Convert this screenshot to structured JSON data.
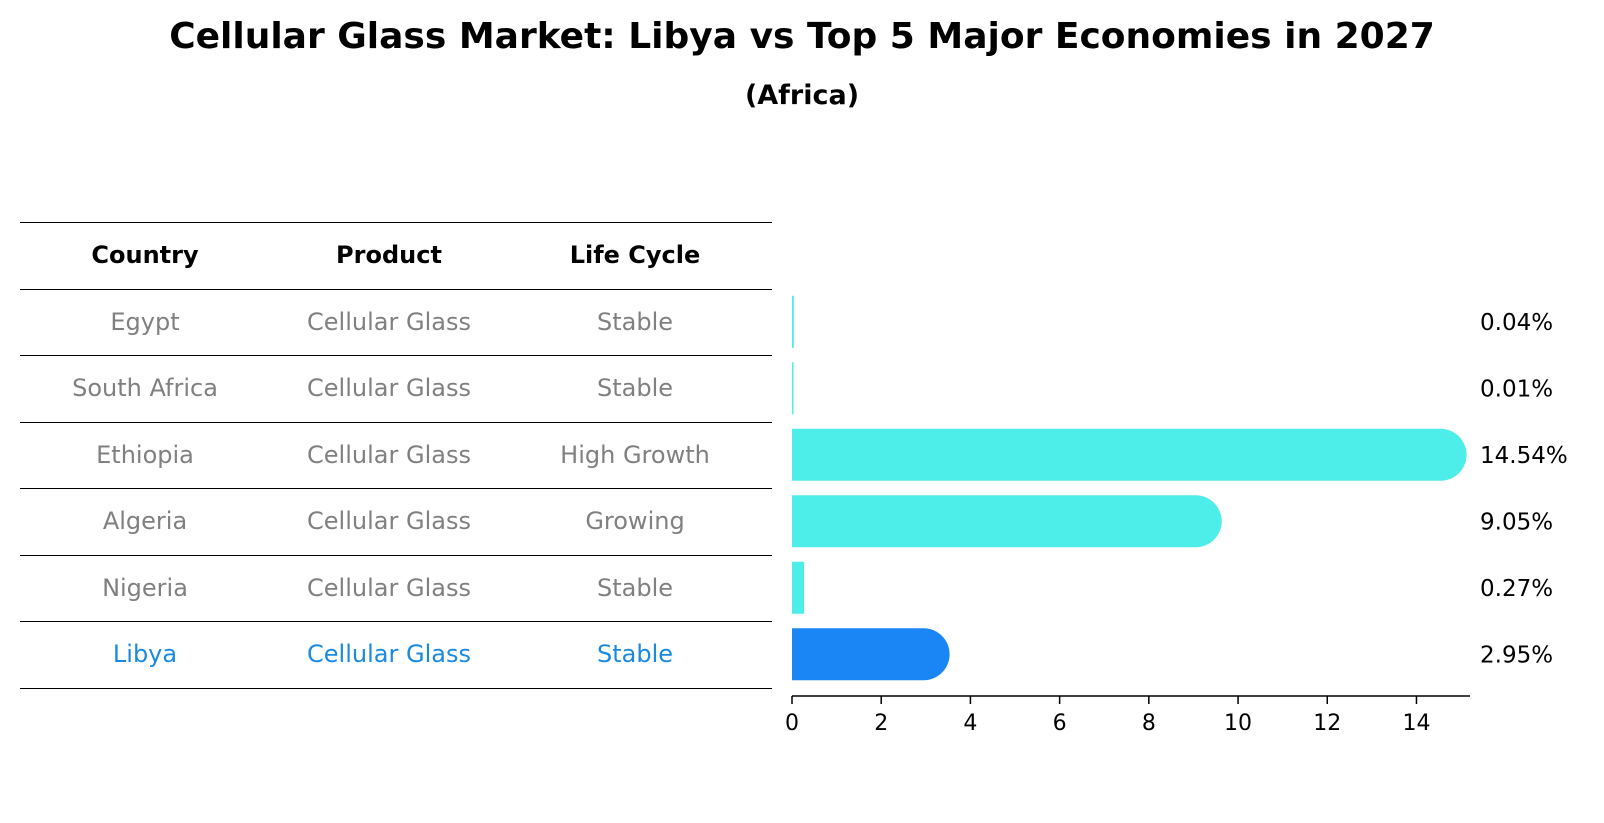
{
  "title": "Cellular Glass Market: Libya vs Top 5 Major Economies in 2027",
  "subtitle": "(Africa)",
  "colors": {
    "bar": "#4dede9",
    "highlight": "#1a85f5",
    "highlight_text": "#1a8ae0"
  },
  "table": {
    "headers": [
      "Country",
      "Product",
      "Life Cycle"
    ],
    "rows": [
      [
        "Egypt",
        "Cellular Glass",
        "Stable"
      ],
      [
        "South Africa",
        "Cellular Glass",
        "Stable"
      ],
      [
        "Ethiopia",
        "Cellular Glass",
        "High Growth"
      ],
      [
        "Algeria",
        "Cellular Glass",
        "Growing"
      ],
      [
        "Nigeria",
        "Cellular Glass",
        "Stable"
      ],
      [
        "Libya",
        "Cellular Glass",
        "Stable"
      ]
    ],
    "highlight_row": 5
  },
  "chart_data": {
    "type": "bar",
    "orientation": "horizontal",
    "categories": [
      "Egypt",
      "South Africa",
      "Ethiopia",
      "Algeria",
      "Nigeria",
      "Libya"
    ],
    "values": [
      0.04,
      0.01,
      14.54,
      9.05,
      0.27,
      2.95
    ],
    "value_labels": [
      "0.04%",
      "0.01%",
      "14.54%",
      "9.05%",
      "0.27%",
      "2.95%"
    ],
    "highlight": "Libya",
    "xlim": [
      0,
      15.2
    ],
    "xticks": [
      0,
      2,
      4,
      6,
      8,
      10,
      12,
      14
    ],
    "xtick_labels": [
      "0",
      "2",
      "4",
      "6",
      "8",
      "10",
      "12",
      "14"
    ],
    "grid": false
  }
}
